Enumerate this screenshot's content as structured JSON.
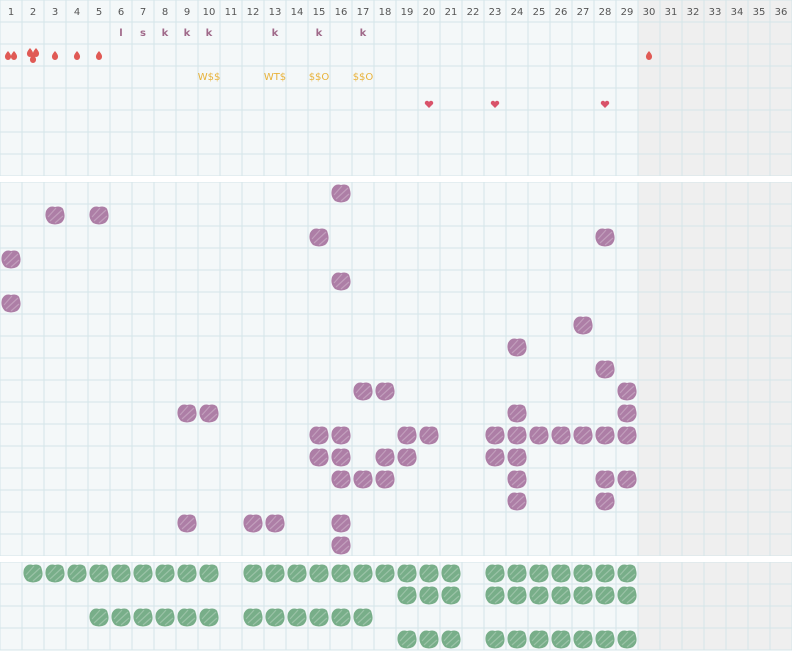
{
  "header": {
    "columns": [
      "1",
      "2",
      "3",
      "4",
      "5",
      "6",
      "7",
      "8",
      "9",
      "10",
      "11",
      "12",
      "13",
      "14",
      "15",
      "16",
      "17",
      "18",
      "19",
      "20",
      "21",
      "22",
      "23",
      "24",
      "25",
      "26",
      "27",
      "28",
      "29",
      "30",
      "31",
      "32",
      "33",
      "34",
      "35",
      "36"
    ]
  },
  "letters": [
    null,
    null,
    null,
    null,
    null,
    "l",
    "s",
    "k",
    "k",
    "k",
    null,
    null,
    "k",
    null,
    "k",
    null,
    "k",
    null,
    null,
    null,
    null,
    null,
    null,
    null,
    null,
    null,
    null,
    null,
    null,
    null,
    null,
    null,
    null,
    null,
    null,
    null
  ],
  "notes": [
    null,
    null,
    null,
    null,
    null,
    null,
    null,
    null,
    null,
    "W$$",
    null,
    null,
    "WT$",
    null,
    "$$O",
    null,
    "$$O",
    null,
    null,
    null,
    null,
    null,
    null,
    null,
    null,
    null,
    null,
    null,
    null,
    null,
    null,
    null,
    null,
    null,
    null,
    null
  ]
}
